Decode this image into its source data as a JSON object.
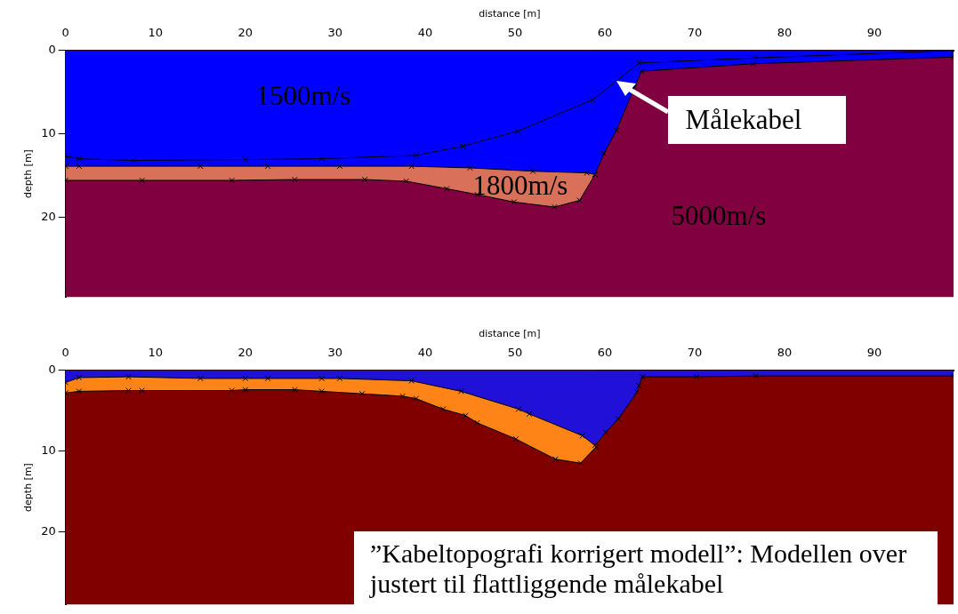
{
  "chart_data": [
    {
      "type": "area",
      "xlabel": "distance [m]",
      "ylabel": "depth [m]",
      "xlim": [
        0,
        98.8
      ],
      "xticks": [
        0,
        10,
        20,
        30,
        40,
        50,
        60,
        70,
        80,
        90
      ],
      "ylim": [
        29.6,
        0
      ],
      "yticks": [
        0,
        10,
        20
      ],
      "grid": false,
      "legend": false,
      "marker": "cross",
      "bands": [
        {
          "axis": "y",
          "from": 0,
          "to": 29.6,
          "color": "#800040"
        }
      ],
      "series": [
        {
          "color": "#d9705a",
          "x": [
            0,
            8.5,
            18.5,
            25.5,
            33.3,
            37.9,
            42.4,
            45.8,
            49.9,
            54.4,
            57.2,
            58.9
          ],
          "values": [
            15.6,
            15.6,
            15.6,
            15.5,
            15.5,
            15.7,
            16.6,
            17.3,
            18.2,
            18.8,
            18,
            14.9
          ]
        },
        {
          "color": "#0000ff",
          "x": [
            0,
            1.5,
            15,
            22.5,
            30.5,
            38.5,
            45,
            52,
            58,
            58.9,
            59.9,
            61.3,
            63.3,
            64.1,
            76.5,
            98.8
          ],
          "values": [
            13.9,
            13.9,
            13.9,
            13.9,
            13.9,
            13.9,
            14.1,
            14.5,
            14.7,
            14.9,
            12.4,
            9.6,
            4.4,
            2.5,
            1.6,
            0.8
          ]
        },
        {
          "type": "line",
          "name": "Målekabel",
          "color": "#000000",
          "x": [
            0,
            1.5,
            7.5,
            20,
            28.5,
            39,
            44.2,
            50.3,
            58.7,
            63.8,
            76.7,
            98.8
          ],
          "values": [
            12.7,
            13,
            13.2,
            13.1,
            13,
            12.6,
            11.5,
            9.7,
            5.9,
            1.5,
            0.9,
            0
          ]
        }
      ],
      "annotations": [
        "1500m/s",
        "1800m/s",
        "5000m/s"
      ]
    },
    {
      "type": "area",
      "xlabel": "distance [m]",
      "ylabel": "depth [m]",
      "xlim": [
        0,
        98.8
      ],
      "xticks": [
        0,
        10,
        20,
        30,
        40,
        50,
        60,
        70,
        80,
        90
      ],
      "ylim": [
        29,
        0
      ],
      "yticks": [
        0,
        10,
        20
      ],
      "grid": false,
      "legend": false,
      "marker": "cross",
      "bands": [
        {
          "axis": "y",
          "from": 0,
          "to": 29,
          "color": "#800000"
        }
      ],
      "series": [
        {
          "color": "#ff8418",
          "x": [
            0,
            1.5,
            7,
            8.5,
            18.5,
            20,
            25.5,
            28.5,
            33,
            37.5,
            39,
            42,
            44.5,
            45.8,
            50.1,
            54.5,
            57.3,
            59
          ],
          "values": [
            2.8,
            2.6,
            2.5,
            2.5,
            2.5,
            2.4,
            2.4,
            2.6,
            2.9,
            3.2,
            3.5,
            4.8,
            5.6,
            6.5,
            8.5,
            11,
            11.5,
            9.5
          ]
        },
        {
          "color": "#2010d8",
          "x": [
            0,
            1.5,
            7,
            15,
            20,
            22.5,
            28.5,
            30.5,
            38.5,
            44,
            50.4,
            51.6,
            57.5,
            58.9,
            60.1,
            61.5,
            63.6,
            63.8,
            64.2,
            70.2,
            76.8,
            98.8
          ],
          "values": [
            1.5,
            0.9,
            0.8,
            1,
            1,
            1,
            1,
            1,
            1.3,
            2.6,
            4.8,
            5.4,
            8.1,
            9.3,
            7.7,
            6,
            2.7,
            1.9,
            0.8,
            0.8,
            0.7,
            0.7
          ]
        }
      ],
      "annotations": [
        "”Kabeltopografi korrigert modell”: Modellen over justert til flattliggende målekabel"
      ]
    }
  ]
}
